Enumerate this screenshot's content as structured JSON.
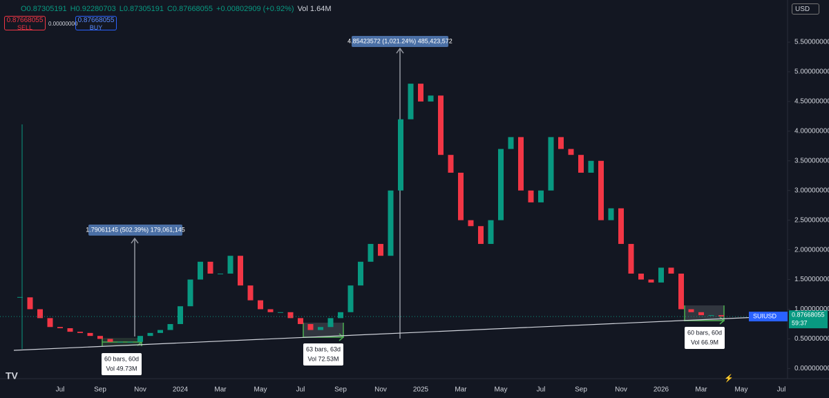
{
  "header": {
    "ohlc": [
      "O0.87305191",
      "H0.92280703",
      "L0.87305191",
      "C0.87668055",
      "+0.00802909 (+0.92%)",
      "Vol 1.64M"
    ],
    "sell_price": "0.87668055",
    "sell_label": "SELL",
    "spread": "0.00000000",
    "buy_price": "0.87668055",
    "buy_label": "BUY",
    "currency": "USD"
  },
  "chart_data": {
    "type": "candlestick",
    "categories": [
      null,
      null,
      null,
      null,
      "Jul",
      null,
      null,
      null,
      "Sep",
      null,
      null,
      null,
      "Nov",
      null,
      null,
      null,
      "2024",
      null,
      null,
      null,
      "Mar",
      null,
      null,
      null,
      "May",
      null,
      null,
      null,
      "Jul",
      null,
      null,
      null,
      "Sep",
      null,
      null,
      null,
      "Nov",
      null,
      null,
      null,
      "2025",
      null,
      null,
      null,
      "Mar",
      null,
      null,
      null,
      "May",
      null,
      null,
      null,
      "Jul",
      null,
      null,
      null,
      "Sep",
      null,
      null,
      null,
      "Nov",
      null,
      null,
      null,
      "2026",
      null,
      null,
      null,
      "Mar",
      null,
      null,
      null,
      "May",
      null,
      null,
      null,
      "Jul"
    ],
    "values": [
      1.2,
      1.0,
      0.85,
      0.7,
      0.68,
      0.62,
      0.6,
      0.55,
      0.5,
      0.45,
      0.45,
      0.45,
      0.55,
      0.6,
      0.65,
      0.75,
      1.05,
      1.5,
      1.8,
      1.6,
      1.6,
      1.9,
      1.4,
      1.15,
      1.0,
      0.95,
      0.95,
      0.85,
      0.75,
      0.65,
      0.7,
      0.85,
      0.95,
      1.4,
      1.8,
      2.1,
      1.9,
      3.0,
      4.2,
      4.8,
      4.5,
      4.6,
      3.6,
      3.3,
      2.5,
      2.4,
      2.1,
      2.5,
      3.7,
      3.9,
      3.0,
      2.8,
      3.0,
      3.9,
      3.7,
      3.6,
      3.3,
      3.5,
      2.5,
      2.7,
      2.1,
      1.6,
      1.5,
      1.45,
      1.7,
      1.6,
      1.0,
      0.95,
      0.9,
      0.9,
      0.87668055,
      null,
      null,
      null,
      null,
      null,
      null
    ],
    "up_color": "#089981",
    "down_color": "#f23645",
    "ylim": [
      -0.17,
      6.21
    ],
    "yticks": [
      {
        "value": 0,
        "label": "0.00000000"
      },
      {
        "value": 0.5,
        "label": "0.50000000"
      },
      {
        "value": 1,
        "label": "1.00000000"
      },
      {
        "value": 1.5,
        "label": "1.50000000"
      },
      {
        "value": 2,
        "label": "2.00000000"
      },
      {
        "value": 2.5,
        "label": "2.50000000"
      },
      {
        "value": 3,
        "label": "3.00000000"
      },
      {
        "value": 3.5,
        "label": "3.50000000"
      },
      {
        "value": 4,
        "label": "4.00000000"
      },
      {
        "value": 4.5,
        "label": "4.50000000"
      },
      {
        "value": 5,
        "label": "5.00000000"
      },
      {
        "value": 5.5,
        "label": "5.50000000"
      }
    ],
    "symbol": "SUIUSD",
    "last_price": "0.87668055",
    "countdown": "59:37",
    "annotations": [
      "1.79061145 (502.39%) 179,061,145",
      "4.85423572 (1,021.24%) 485,423,572",
      "60 bars, 60d",
      "Vol 49.73M",
      "63 bars, 63d",
      "Vol 72.53M",
      "60 bars, 60d",
      "Vol 66.9M"
    ]
  }
}
